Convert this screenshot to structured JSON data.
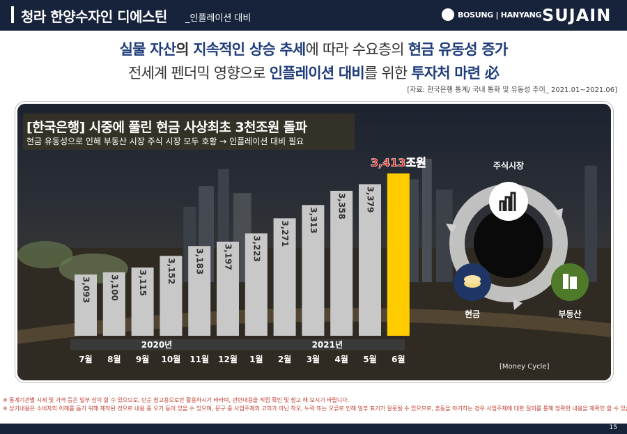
{
  "header": {
    "title": "청라 한양수자인 디에스틴",
    "subtitle": "_인플레이션 대비",
    "brand_text": "BOSUNG | HANYANG",
    "brand_logo": "SUJAIN"
  },
  "headline": {
    "line1": [
      "실물 자산",
      "의 ",
      "지속적인 상승 추세",
      "에 따라 수요층의 ",
      "현금 유동성 증가"
    ],
    "line2": [
      "전세계 펜더믹 영향으로 ",
      "인플레이션 대비",
      "를 위한 ",
      "투자처 마련 必"
    ]
  },
  "source": "[자료: 한국은행 통계/  국내 통화 및 유동성 추이_ 2021.01~2021.06]",
  "chart_data": {
    "type": "bar",
    "title": "[한국은행] 시중에 풀린 현금 사상최초 3천조원 돌파",
    "subtitle": "현금 유동성으로 인해 부동산 시장 주식 시장 모두 호황 → 인플레이션 대비 필요",
    "categories": [
      "7월",
      "8월",
      "9월",
      "10월",
      "11월",
      "12월",
      "1월",
      "2월",
      "3월",
      "4월",
      "5월",
      "6월"
    ],
    "value_labels": [
      "3,093",
      "3,100",
      "3,115",
      "3,152",
      "3,183",
      "3,197",
      "3,223",
      "3,271",
      "3,313",
      "3,358",
      "3,379",
      "3,413조원"
    ],
    "values": [
      3093,
      3100,
      3115,
      3152,
      3183,
      3197,
      3223,
      3271,
      3313,
      3358,
      3379,
      3413
    ],
    "year_groups": [
      {
        "label": "2020년",
        "from": 0,
        "to": 5
      },
      {
        "label": "2021년",
        "from": 6,
        "to": 11
      }
    ],
    "highlight_index": 11,
    "colors": {
      "bar": "#c8c8c8",
      "highlight": "#ffcc00",
      "highlight_label": "#e0241b"
    },
    "xlabel": "",
    "ylabel": ""
  },
  "money_cycle": {
    "stock_label": "주식시장",
    "cash_label": "현금",
    "realestate_label": "부동산",
    "caption": "[Money Cycle]",
    "icons": [
      "chart-icon",
      "coins-icon",
      "building-icon"
    ]
  },
  "footer": {
    "note1": "※ 통계기관별 시세 및 가격 등은 일부 상이 할 수 있으므로, 단순 참고용으로만 활용하시기 바라며, 관련내용을 직접 확인 및 참고 해 보시기 바랍니다.",
    "note2": "※ 상기내용은 소비자의 이해를 돕기 위해 제작된 것으로 내용 중 오기 등이 있을 수 있으며, 문구 중 사업주체의 고의가 아닌 착오, 누락 또는 오류로 인해 일부 표기가 잘못될 수 있으므로, 혼동을 야기하는 경우 사업주체에 대한 질의를 통해 정확한 내용을 재확인 할 수 있습니다.",
    "page": "15"
  }
}
